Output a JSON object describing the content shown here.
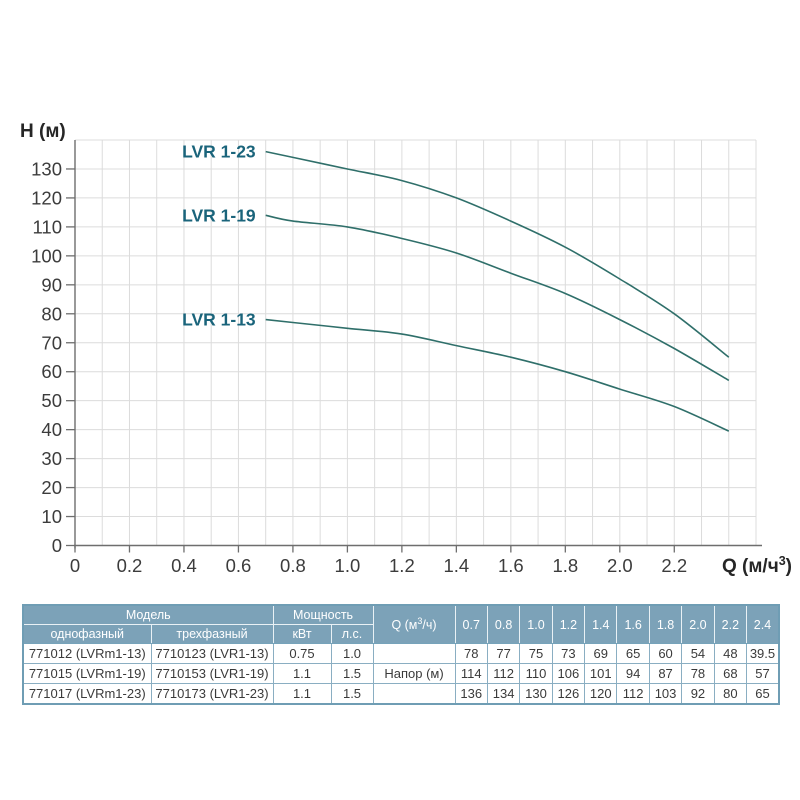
{
  "colors": {
    "curve": "#2F6F6A",
    "curve_label": "#1A647B",
    "grid": "#DCDCDC",
    "axis": "#6E6E6E",
    "tick_text": "#3C3C3C",
    "axis_label_text": "#262626",
    "table_header_bg": "#7CA2B8",
    "table_border": "#76A3BA",
    "table_text": "#3A3A3A"
  },
  "chart_data": {
    "type": "line",
    "title": "",
    "xlabel": "Q (м/ч³)",
    "xlabel_parts": {
      "pre": "Q (м/ч",
      "sup": "3",
      "post": ")"
    },
    "ylabel": "H (м)",
    "xlim": [
      0,
      2.5
    ],
    "ylim": [
      0,
      140
    ],
    "grid": true,
    "x_grid_step": 0.1,
    "y_grid_step": 10,
    "x_ticks": [
      "0",
      "0.2",
      "0.4",
      "0.6",
      "0.8",
      "1.0",
      "1.2",
      "1.4",
      "1.6",
      "1.8",
      "2.0",
      "2.2"
    ],
    "x_tick_values": [
      0,
      0.2,
      0.4,
      0.6,
      0.8,
      1.0,
      1.2,
      1.4,
      1.6,
      1.8,
      2.0,
      2.2
    ],
    "y_ticks": [
      "0",
      "10",
      "20",
      "30",
      "40",
      "50",
      "60",
      "70",
      "80",
      "90",
      "100",
      "110",
      "120",
      "130"
    ],
    "y_tick_values": [
      0,
      10,
      20,
      30,
      40,
      50,
      60,
      70,
      80,
      90,
      100,
      110,
      120,
      130
    ],
    "legend_position": "inline-left-of-curve-start",
    "x": [
      0.7,
      0.8,
      1.0,
      1.2,
      1.4,
      1.6,
      1.8,
      2.0,
      2.2,
      2.4
    ],
    "series": [
      {
        "name": "LVR 1-23",
        "values": [
          136,
          134,
          130,
          126,
          120,
          112,
          103,
          92,
          80,
          65
        ]
      },
      {
        "name": "LVR 1-19",
        "values": [
          114,
          112,
          110,
          106,
          101,
          94,
          87,
          78,
          68,
          57
        ]
      },
      {
        "name": "LVR 1-13",
        "values": [
          78,
          77,
          75,
          73,
          69,
          65,
          60,
          54,
          48,
          39.5
        ]
      }
    ]
  },
  "table": {
    "header": {
      "model_group": "Модель",
      "power_group": "Мощность",
      "single_phase": "однофазный",
      "three_phase": "трехфазный",
      "kw": "кВт",
      "hp": "л.с.",
      "q": {
        "pre": "Q (м",
        "sup": "3",
        "post": "/ч)"
      },
      "q_values": [
        "0.7",
        "0.8",
        "1.0",
        "1.2",
        "1.4",
        "1.6",
        "1.8",
        "2.0",
        "2.2",
        "2.4"
      ]
    },
    "head_label": "Напор (м)",
    "rows": [
      {
        "single_phase": "771012 (LVRm1-13)",
        "three_phase": "7710123 (LVR1-13)",
        "kw": "0.75",
        "hp": "1.0",
        "head_values": [
          "78",
          "77",
          "75",
          "73",
          "69",
          "65",
          "60",
          "54",
          "48",
          "39.5"
        ]
      },
      {
        "single_phase": "771015 (LVRm1-19)",
        "three_phase": "7710153 (LVR1-19)",
        "kw": "1.1",
        "hp": "1.5",
        "head_values": [
          "114",
          "112",
          "110",
          "106",
          "101",
          "94",
          "87",
          "78",
          "68",
          "57"
        ]
      },
      {
        "single_phase": "771017 (LVRm1-23)",
        "three_phase": "7710173 (LVR1-23)",
        "kw": "1.1",
        "hp": "1.5",
        "head_values": [
          "136",
          "134",
          "130",
          "126",
          "120",
          "112",
          "103",
          "92",
          "80",
          "65"
        ]
      }
    ]
  }
}
